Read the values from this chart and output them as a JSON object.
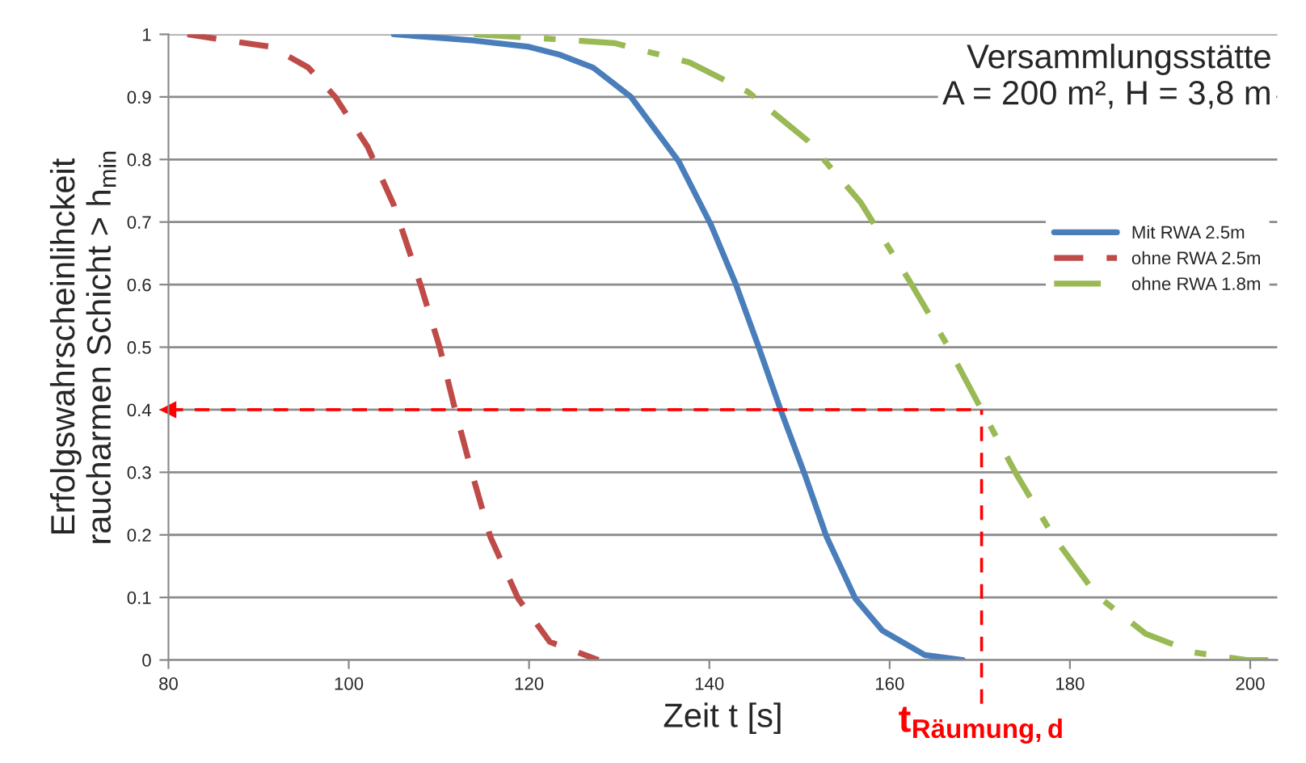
{
  "chart_data": {
    "type": "line",
    "xlabel": "Zeit t [s]",
    "ylabel": "Erfolgswahrscheinlihckeit\nraucharmen Schicht > h$_{min}$",
    "annotations": [
      "Versammlungsstätte\nA = 200 m², H = 3,8 m"
    ],
    "xlim": [
      80,
      203
    ],
    "ylim": [
      0,
      1
    ],
    "xticks": [
      80,
      100,
      120,
      140,
      160,
      180,
      200
    ],
    "yticks": [
      0,
      0.1,
      0.2,
      0.3,
      0.4,
      0.5,
      0.6,
      0.7,
      0.8,
      0.9,
      1
    ],
    "grid": "y",
    "legend": "right",
    "marker": "none",
    "ref_lines": [
      {
        "axis": "x",
        "value": 170.2,
        "label": "t$_{Räumung,d}$",
        "color": "#ff0000",
        "line_style": "dashed"
      },
      {
        "axis": "y",
        "value": 0.4,
        "label": null,
        "color": "#ff0000",
        "line_style": "dashed"
      }
    ],
    "series": [
      {
        "name": "Mit RWA 2.5m",
        "color": "#4a7ebb",
        "line_style": "solid",
        "x": [
          105.0,
          113.9,
          120.0,
          123.5,
          127.1,
          131.3,
          136.6,
          140.2,
          142.9,
          145.5,
          147.9,
          150.6,
          153.0,
          156.2,
          159.2,
          163.9,
          168.1
        ],
        "values": [
          1.0,
          0.99,
          0.98,
          0.967,
          0.947,
          0.9,
          0.797,
          0.695,
          0.602,
          0.499,
          0.4,
          0.296,
          0.197,
          0.098,
          0.047,
          0.008,
          0.0
        ]
      },
      {
        "name": "ohne RWA 2.5m",
        "color": "#be4b48",
        "line_style": "dashed",
        "x": [
          82.1,
          86.6,
          91.4,
          95.5,
          98.5,
          102.1,
          105.0,
          108.0,
          110.1,
          111.8,
          113.7,
          115.7,
          118.8,
          122.3,
          127.7
        ],
        "values": [
          1.0,
          0.99,
          0.98,
          0.947,
          0.9,
          0.82,
          0.727,
          0.598,
          0.499,
          0.4,
          0.297,
          0.197,
          0.098,
          0.029,
          0.0
        ]
      },
      {
        "name": "ohne RWA 1.8m",
        "color": "#98b954",
        "line_style": "dashdot",
        "x": [
          113.9,
          121.1,
          129.5,
          137.8,
          144.3,
          150.9,
          156.8,
          162.2,
          166.4,
          170.2,
          174.1,
          178.2,
          183.0,
          188.4,
          193.8,
          199.6,
          202.0
        ],
        "values": [
          1.0,
          0.994,
          0.986,
          0.955,
          0.908,
          0.83,
          0.731,
          0.606,
          0.503,
          0.4,
          0.296,
          0.197,
          0.103,
          0.042,
          0.012,
          0.0,
          0.0
        ]
      }
    ]
  }
}
